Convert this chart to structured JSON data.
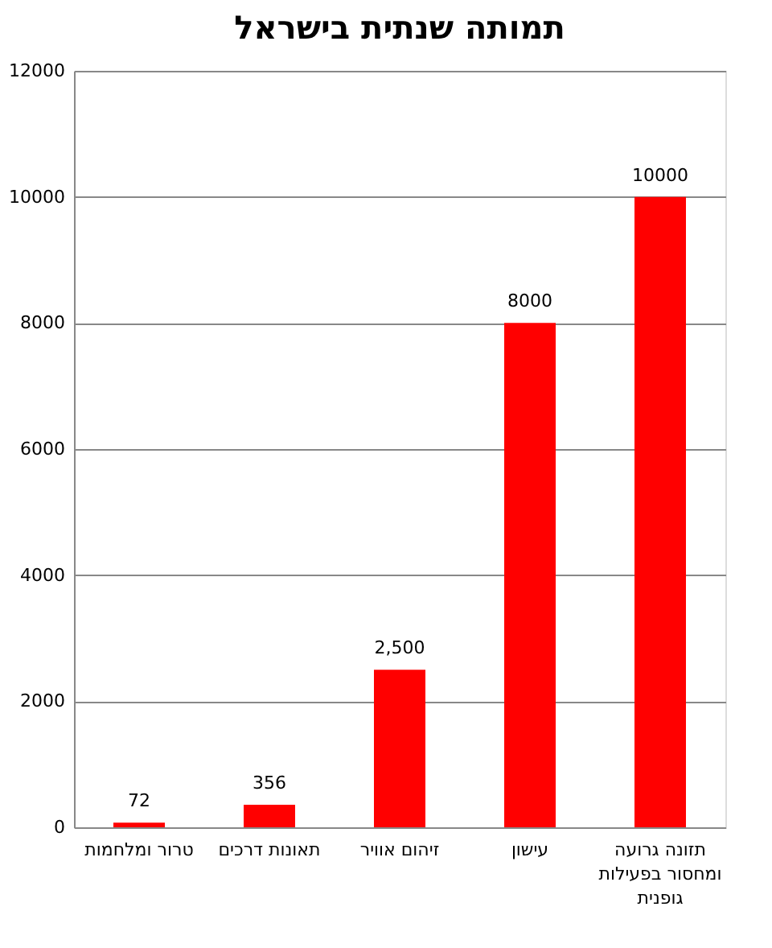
{
  "chart_data": {
    "type": "bar",
    "title": "תמותה שנתית בישראל",
    "categories": [
      "טרור ומלחמות",
      "תאונות דרכים",
      "זיהום אוויר",
      "עישון",
      "תזונה גרועה ומחסור בפעילות גופנית"
    ],
    "values": [
      72,
      356,
      2500,
      8000,
      10000
    ],
    "value_labels": [
      "72",
      "356",
      "2,500",
      "8000",
      "10000"
    ],
    "color": "#ff0000",
    "ylim": [
      0,
      12000
    ],
    "yticks": [
      0,
      2000,
      4000,
      6000,
      8000,
      10000,
      12000
    ],
    "grid": "y"
  }
}
